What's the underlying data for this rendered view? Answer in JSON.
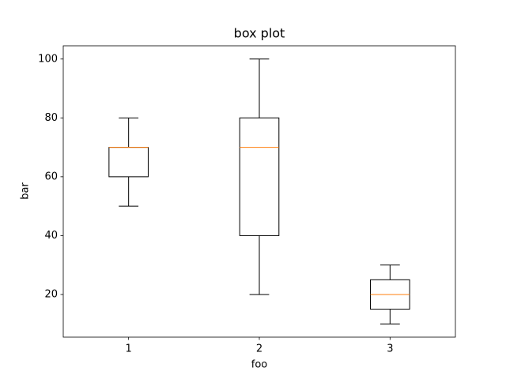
{
  "chart_data": {
    "type": "box",
    "title": "box plot",
    "x_label": "foo",
    "y_label": "bar",
    "x": [
      1,
      2,
      3
    ],
    "boxes": [
      {
        "min": 50,
        "q1": 60,
        "median": 70,
        "q3": 70,
        "max": 80
      },
      {
        "min": 20,
        "q1": 40,
        "median": 70,
        "q3": 80,
        "max": 100
      },
      {
        "min": 10,
        "q1": 15,
        "median": 20,
        "q3": 25,
        "max": 30
      }
    ],
    "color": "#000000",
    "median_color": "#ff7f0e",
    "xlim": [
      0.5,
      3.5
    ],
    "xticks": [
      1,
      2,
      3
    ],
    "ylim": [
      5.5,
      104.5
    ],
    "yticks": [
      20,
      40,
      60,
      80,
      100
    ]
  }
}
